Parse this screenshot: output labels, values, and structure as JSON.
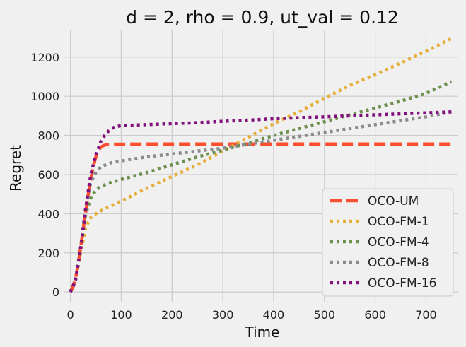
{
  "chart_data": {
    "type": "line",
    "title": "d = 2, rho = 0.9, ut_val = 0.12",
    "xlabel": "Time",
    "ylabel": "Regret",
    "xlim": [
      -12,
      762
    ],
    "ylim": [
      -50,
      1340
    ],
    "xticks": [
      0,
      100,
      200,
      300,
      400,
      500,
      600,
      700
    ],
    "yticks": [
      0,
      200,
      400,
      600,
      800,
      1000,
      1200
    ],
    "grid": true,
    "legend_position": "lower-right",
    "series": [
      {
        "name": "OCO-UM",
        "color": "#fc4f30",
        "style": "dashed",
        "x": [
          0,
          5,
          10,
          15,
          20,
          25,
          30,
          35,
          40,
          45,
          50,
          55,
          60,
          65,
          70,
          80,
          90,
          100,
          150,
          200,
          300,
          400,
          500,
          600,
          750
        ],
        "y": [
          0,
          25,
          70,
          140,
          225,
          320,
          410,
          500,
          575,
          640,
          690,
          722,
          740,
          748,
          752,
          754,
          755,
          755,
          756,
          756,
          756,
          756,
          756,
          756,
          756
        ]
      },
      {
        "name": "OCO-FM-1",
        "color": "#e5ae38",
        "style": "dotted",
        "x": [
          0,
          10,
          20,
          30,
          40,
          50,
          60,
          80,
          100,
          150,
          200,
          250,
          300,
          350,
          400,
          450,
          500,
          550,
          600,
          650,
          700,
          750
        ],
        "y": [
          0,
          60,
          200,
          330,
          380,
          400,
          415,
          440,
          465,
          530,
          590,
          650,
          720,
          790,
          860,
          920,
          990,
          1055,
          1110,
          1170,
          1230,
          1295
        ]
      },
      {
        "name": "OCO-FM-4",
        "color": "#6d904f",
        "style": "dotted",
        "x": [
          0,
          10,
          20,
          30,
          40,
          50,
          60,
          80,
          100,
          150,
          200,
          250,
          300,
          350,
          400,
          450,
          500,
          550,
          600,
          650,
          700,
          750
        ],
        "y": [
          0,
          60,
          220,
          400,
          480,
          520,
          540,
          560,
          575,
          610,
          650,
          690,
          725,
          760,
          800,
          835,
          870,
          905,
          940,
          975,
          1015,
          1075
        ]
      },
      {
        "name": "OCO-FM-8",
        "color": "#8b8b8b",
        "style": "dotted",
        "x": [
          0,
          10,
          20,
          30,
          40,
          50,
          60,
          80,
          100,
          150,
          200,
          250,
          300,
          350,
          400,
          450,
          500,
          550,
          600,
          650,
          700,
          750
        ],
        "y": [
          0,
          60,
          230,
          430,
          560,
          610,
          640,
          660,
          670,
          690,
          705,
          720,
          735,
          755,
          775,
          795,
          815,
          835,
          855,
          875,
          895,
          920
        ]
      },
      {
        "name": "OCO-FM-16",
        "color": "#810f7c",
        "style": "dotted",
        "x": [
          0,
          10,
          20,
          30,
          40,
          50,
          60,
          70,
          80,
          90,
          100,
          150,
          200,
          250,
          300,
          350,
          400,
          450,
          500,
          550,
          600,
          650,
          700,
          750
        ],
        "y": [
          0,
          60,
          220,
          430,
          600,
          700,
          770,
          810,
          835,
          845,
          850,
          855,
          860,
          865,
          872,
          878,
          885,
          890,
          895,
          900,
          905,
          910,
          915,
          920
        ]
      }
    ]
  }
}
